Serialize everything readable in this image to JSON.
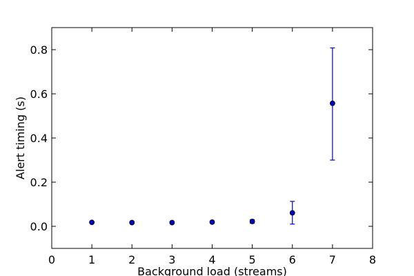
{
  "chart_data": {
    "type": "scatter",
    "title": "",
    "xlabel": "Background load (streams)",
    "ylabel": "Alert timing (s)",
    "xlim": [
      0,
      8
    ],
    "ylim": [
      -0.1,
      0.9
    ],
    "xticks": [
      0,
      1,
      2,
      3,
      4,
      5,
      6,
      7,
      8
    ],
    "xtick_labels": [
      "0",
      "1",
      "2",
      "3",
      "4",
      "5",
      "6",
      "7",
      "8"
    ],
    "yticks": [
      0.0,
      0.2,
      0.4,
      0.6,
      0.8
    ],
    "ytick_labels": [
      "0.0",
      "0.2",
      "0.4",
      "0.6",
      "0.8"
    ],
    "grid": false,
    "legend": "none",
    "error_bars": true,
    "colors": {
      "marker": "#0000bf",
      "errorbar": "#0000bf",
      "axes": "#000000"
    },
    "series": [
      {
        "x": [
          1,
          2,
          3,
          4,
          5,
          6,
          7
        ],
        "y": [
          0.018,
          0.017,
          0.017,
          0.019,
          0.022,
          0.061,
          0.557
        ],
        "yerr_low": [
          0.003,
          0.003,
          0.003,
          0.005,
          0.008,
          0.051,
          0.257
        ],
        "yerr_high": [
          0.003,
          0.003,
          0.003,
          0.005,
          0.008,
          0.052,
          0.251
        ]
      }
    ]
  }
}
